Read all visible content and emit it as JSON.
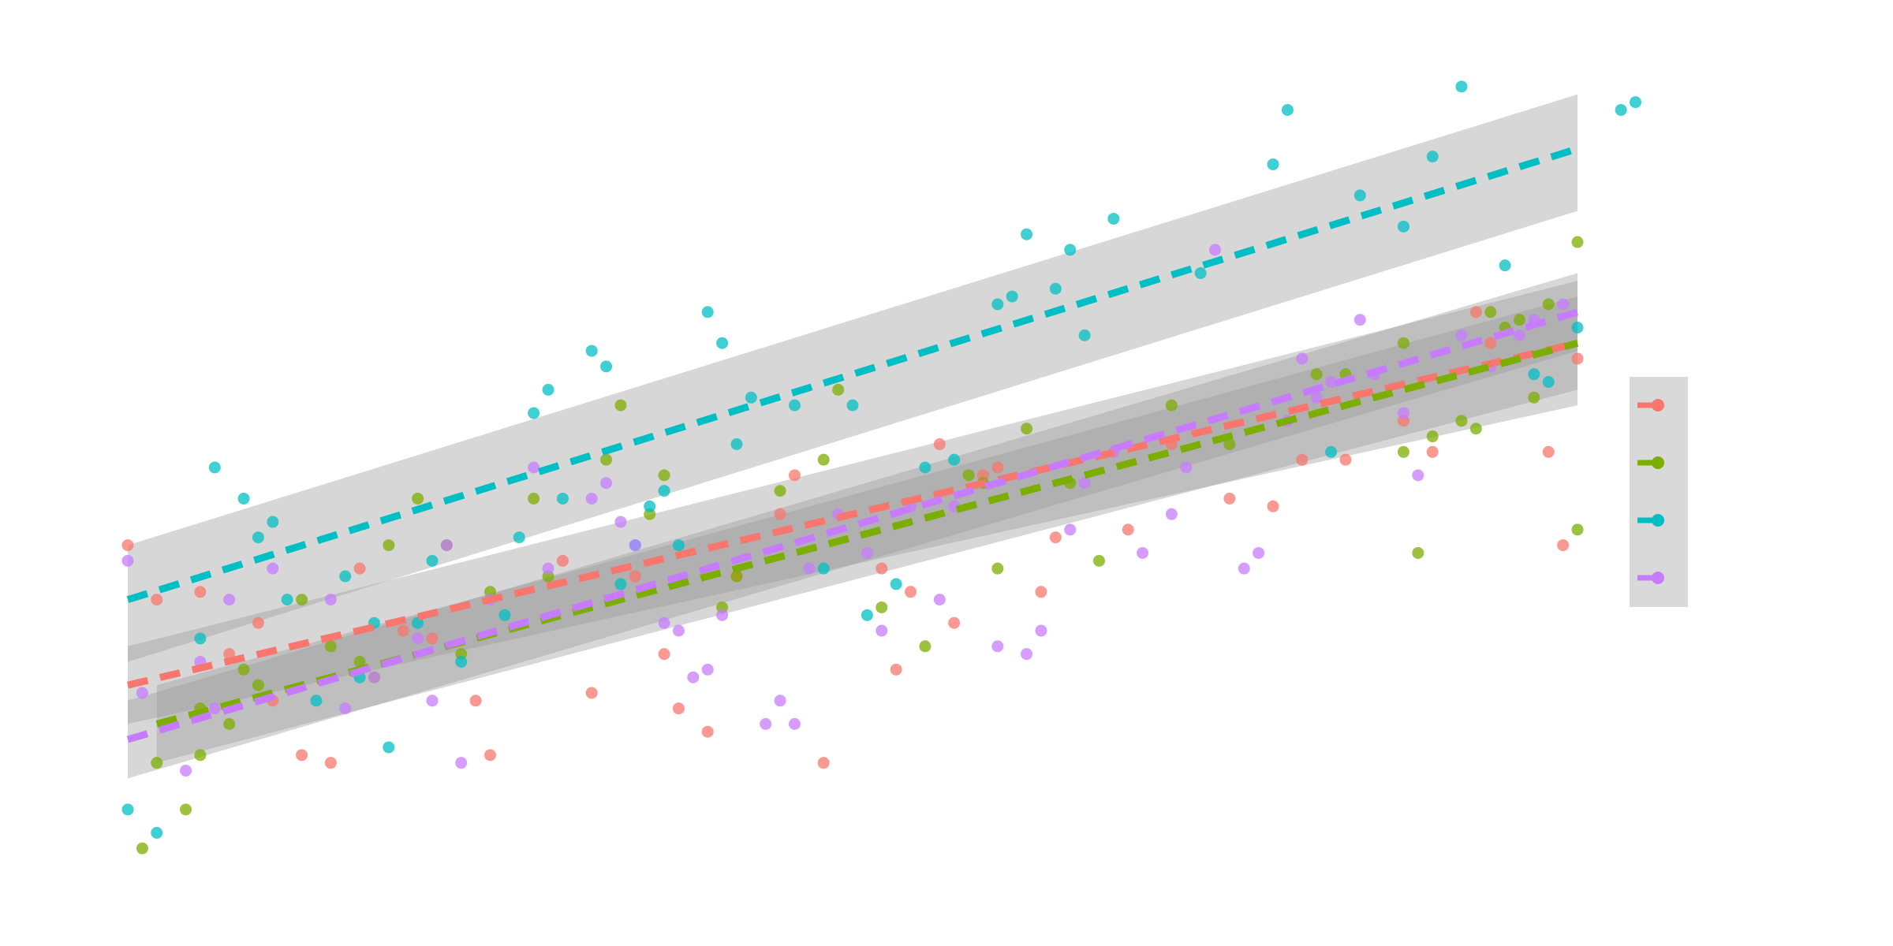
{
  "chart_data": {
    "type": "scatter",
    "title": "",
    "xlabel": "",
    "ylabel": "",
    "xlim": [
      0,
      100
    ],
    "ylim": [
      0,
      100
    ],
    "grid": false,
    "legend_placement": "right",
    "band_color": "#9a9a9a",
    "series": [
      {
        "color": "#F8766D",
        "fit": {
          "x": [
            0,
            100
          ],
          "y": [
            22,
            66
          ],
          "lower": [
            17,
            58
          ],
          "upper": [
            27,
            74
          ]
        },
        "points": [
          [
            0,
            40
          ],
          [
            2,
            33
          ],
          [
            5,
            34
          ],
          [
            7,
            26
          ],
          [
            9,
            30
          ],
          [
            10,
            20
          ],
          [
            12,
            13
          ],
          [
            14,
            12
          ],
          [
            16,
            37
          ],
          [
            19,
            29
          ],
          [
            21,
            28
          ],
          [
            24,
            20
          ],
          [
            25,
            13
          ],
          [
            30,
            38
          ],
          [
            32,
            21
          ],
          [
            35,
            36
          ],
          [
            37,
            26
          ],
          [
            38,
            19
          ],
          [
            40,
            16
          ],
          [
            42,
            36
          ],
          [
            45,
            44
          ],
          [
            46,
            49
          ],
          [
            48,
            12
          ],
          [
            52,
            37
          ],
          [
            53,
            24
          ],
          [
            54,
            34
          ],
          [
            56,
            53
          ],
          [
            57,
            30
          ],
          [
            59,
            49
          ],
          [
            60,
            50
          ],
          [
            63,
            34
          ],
          [
            64,
            41
          ],
          [
            69,
            42
          ],
          [
            72,
            53
          ],
          [
            76,
            46
          ],
          [
            79,
            45
          ],
          [
            81,
            51
          ],
          [
            84,
            51
          ],
          [
            88,
            56
          ],
          [
            90,
            52
          ],
          [
            93,
            70
          ],
          [
            94,
            66
          ],
          [
            100,
            64
          ],
          [
            98,
            52
          ],
          [
            99,
            40
          ]
        ]
      },
      {
        "color": "#7CAE00",
        "fit": {
          "x": [
            2,
            100
          ],
          "y": [
            17,
            66
          ],
          "lower": [
            12,
            60
          ],
          "upper": [
            22,
            72
          ]
        },
        "points": [
          [
            1,
            1
          ],
          [
            2,
            12
          ],
          [
            4,
            6
          ],
          [
            5,
            13
          ],
          [
            5,
            19
          ],
          [
            7,
            17
          ],
          [
            8,
            24
          ],
          [
            9,
            22
          ],
          [
            12,
            33
          ],
          [
            14,
            27
          ],
          [
            16,
            25
          ],
          [
            17,
            23
          ],
          [
            18,
            40
          ],
          [
            20,
            46
          ],
          [
            22,
            40
          ],
          [
            23,
            26
          ],
          [
            25,
            34
          ],
          [
            28,
            46
          ],
          [
            29,
            36
          ],
          [
            33,
            51
          ],
          [
            34,
            58
          ],
          [
            36,
            44
          ],
          [
            37,
            49
          ],
          [
            41,
            32
          ],
          [
            42,
            36
          ],
          [
            45,
            47
          ],
          [
            48,
            51
          ],
          [
            49,
            60
          ],
          [
            52,
            32
          ],
          [
            55,
            27
          ],
          [
            58,
            49
          ],
          [
            59,
            48
          ],
          [
            60,
            37
          ],
          [
            62,
            55
          ],
          [
            65,
            48
          ],
          [
            67,
            38
          ],
          [
            72,
            58
          ],
          [
            76,
            53
          ],
          [
            82,
            62
          ],
          [
            84,
            62
          ],
          [
            88,
            52
          ],
          [
            88,
            66
          ],
          [
            90,
            54
          ],
          [
            92,
            56
          ],
          [
            93,
            55
          ],
          [
            94,
            70
          ],
          [
            96,
            69
          ],
          [
            98,
            71
          ],
          [
            100,
            79
          ],
          [
            100,
            42
          ],
          [
            97,
            59
          ],
          [
            95,
            68
          ],
          [
            89,
            39
          ]
        ]
      },
      {
        "color": "#00BFC4",
        "fit": {
          "x": [
            0,
            100
          ],
          "y": [
            33,
            91
          ],
          "lower": [
            25,
            83
          ],
          "upper": [
            40,
            98
          ]
        },
        "points": [
          [
            0,
            6
          ],
          [
            2,
            3
          ],
          [
            5,
            28
          ],
          [
            6,
            50
          ],
          [
            8,
            46
          ],
          [
            9,
            41
          ],
          [
            10,
            43
          ],
          [
            11,
            33
          ],
          [
            13,
            20
          ],
          [
            15,
            36
          ],
          [
            16,
            23
          ],
          [
            17,
            30
          ],
          [
            18,
            14
          ],
          [
            20,
            30
          ],
          [
            21,
            38
          ],
          [
            23,
            25
          ],
          [
            26,
            31
          ],
          [
            27,
            41
          ],
          [
            28,
            57
          ],
          [
            29,
            60
          ],
          [
            30,
            46
          ],
          [
            32,
            65
          ],
          [
            33,
            63
          ],
          [
            34,
            35
          ],
          [
            35,
            40
          ],
          [
            36,
            45
          ],
          [
            37,
            47
          ],
          [
            38,
            40
          ],
          [
            40,
            70
          ],
          [
            41,
            66
          ],
          [
            42,
            53
          ],
          [
            43,
            59
          ],
          [
            46,
            58
          ],
          [
            48,
            37
          ],
          [
            50,
            58
          ],
          [
            51,
            31
          ],
          [
            53,
            35
          ],
          [
            55,
            50
          ],
          [
            57,
            51
          ],
          [
            60,
            71
          ],
          [
            61,
            72
          ],
          [
            62,
            80
          ],
          [
            64,
            73
          ],
          [
            65,
            78
          ],
          [
            66,
            67
          ],
          [
            68,
            82
          ],
          [
            74,
            75
          ],
          [
            79,
            89
          ],
          [
            80,
            96
          ],
          [
            83,
            52
          ],
          [
            85,
            85
          ],
          [
            88,
            81
          ],
          [
            90,
            90
          ],
          [
            92,
            99
          ],
          [
            95,
            76
          ],
          [
            97,
            62
          ],
          [
            98,
            61
          ],
          [
            100,
            68
          ],
          [
            103,
            96
          ],
          [
            104,
            97
          ]
        ]
      },
      {
        "color": "#C77CFF",
        "fit": {
          "x": [
            0,
            100
          ],
          "y": [
            15,
            70
          ],
          "lower": [
            10,
            65
          ],
          "upper": [
            20,
            75
          ]
        },
        "points": [
          [
            0,
            38
          ],
          [
            1,
            21
          ],
          [
            4,
            11
          ],
          [
            5,
            25
          ],
          [
            6,
            19
          ],
          [
            7,
            33
          ],
          [
            10,
            37
          ],
          [
            14,
            33
          ],
          [
            15,
            19
          ],
          [
            17,
            23
          ],
          [
            20,
            28
          ],
          [
            21,
            20
          ],
          [
            22,
            40
          ],
          [
            23,
            12
          ],
          [
            25,
            33
          ],
          [
            28,
            50
          ],
          [
            29,
            37
          ],
          [
            32,
            46
          ],
          [
            33,
            48
          ],
          [
            34,
            43
          ],
          [
            35,
            40
          ],
          [
            37,
            30
          ],
          [
            38,
            29
          ],
          [
            39,
            23
          ],
          [
            40,
            24
          ],
          [
            41,
            31
          ],
          [
            44,
            17
          ],
          [
            45,
            20
          ],
          [
            46,
            17
          ],
          [
            47,
            37
          ],
          [
            49,
            44
          ],
          [
            51,
            39
          ],
          [
            52,
            29
          ],
          [
            54,
            45
          ],
          [
            56,
            33
          ],
          [
            57,
            45
          ],
          [
            60,
            27
          ],
          [
            62,
            26
          ],
          [
            63,
            29
          ],
          [
            65,
            42
          ],
          [
            66,
            48
          ],
          [
            68,
            52
          ],
          [
            70,
            39
          ],
          [
            72,
            44
          ],
          [
            73,
            50
          ],
          [
            75,
            78
          ],
          [
            77,
            37
          ],
          [
            78,
            39
          ],
          [
            80,
            56
          ],
          [
            81,
            64
          ],
          [
            82,
            59
          ],
          [
            83,
            61
          ],
          [
            85,
            69
          ],
          [
            86,
            62
          ],
          [
            88,
            57
          ],
          [
            89,
            49
          ],
          [
            92,
            67
          ],
          [
            94,
            63
          ],
          [
            96,
            67
          ],
          [
            97,
            69
          ],
          [
            99,
            71
          ]
        ]
      }
    ]
  }
}
